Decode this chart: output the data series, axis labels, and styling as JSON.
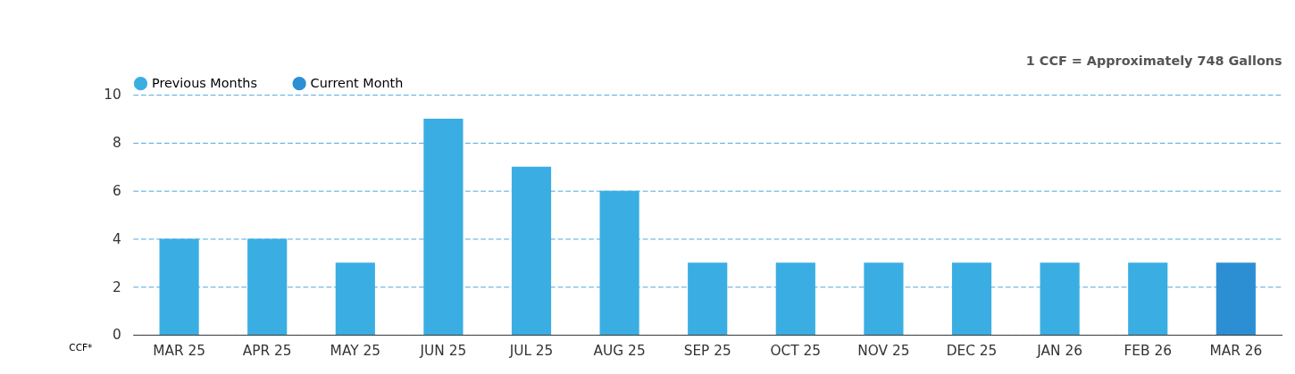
{
  "chart_data": {
    "type": "bar",
    "ylabel": "CCF*",
    "categories": [
      "MAR 25",
      "APR 25",
      "MAY 25",
      "JUN 25",
      "JUL 25",
      "AUG 25",
      "SEP 25",
      "OCT 25",
      "NOV 25",
      "DEC 25",
      "JAN 26",
      "FEB 26",
      "MAR 26"
    ],
    "series": [
      {
        "name": "Previous Months",
        "color": "#3aaee2",
        "values": [
          4,
          4,
          3,
          9,
          7,
          6,
          3,
          3,
          3,
          3,
          3,
          3,
          null
        ]
      },
      {
        "name": "Current Month",
        "color": "#2c8fd3",
        "values": [
          null,
          null,
          null,
          null,
          null,
          null,
          null,
          null,
          null,
          null,
          null,
          null,
          3
        ]
      }
    ],
    "ylim": [
      0,
      10
    ],
    "yticks": [
      0,
      2,
      4,
      6,
      8,
      10
    ],
    "grid": "y",
    "legend": "top",
    "annotations": [
      "1 CCF = Approximately 748 Gallons"
    ]
  }
}
